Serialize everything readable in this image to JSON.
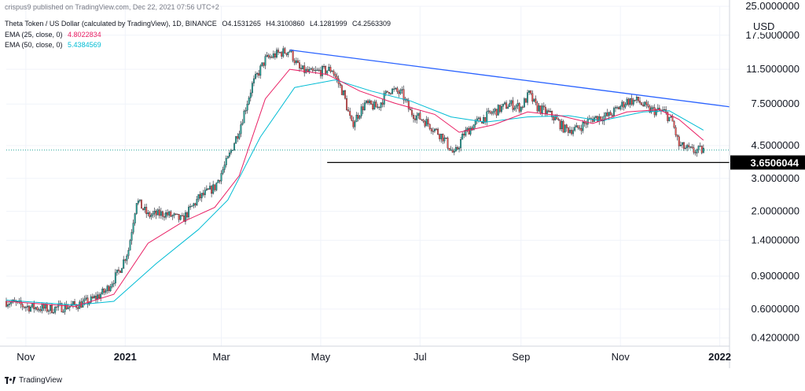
{
  "publish_info": "crispus9 published on TradingView.com, Dec 22, 2021 07:56 UTC+2",
  "legend": {
    "symbol": "Theta Token / US Dollar (calculated by TradingView), 1D, BINANCE",
    "ohlc": {
      "o": "O4.1531265",
      "h": "H4.3100860",
      "l": "L4.1281999",
      "c": "C4.2563309"
    },
    "ema25": {
      "label": "EMA (25, close, 0)",
      "value": "4.8022834"
    },
    "ema50": {
      "label": "EMA (50, close, 0)",
      "value": "5.4384569"
    }
  },
  "price_axis": {
    "currency": "USD",
    "ticks": [
      "25.0000000",
      "17.5000000",
      "11.5000000",
      "7.5000000",
      "4.5000000",
      "3.0000000",
      "2.0000000",
      "1.4000000",
      "0.9000000",
      "0.6000000",
      "0.4200000"
    ],
    "last_price_label": "3.6506044"
  },
  "time_axis": {
    "ticks": [
      "Nov",
      "2021",
      "Mar",
      "May",
      "Jul",
      "Sep",
      "Nov",
      "2022"
    ]
  },
  "footer": {
    "brand": "TradingView"
  },
  "colors": {
    "up": "#26a69a",
    "down": "#ef5350",
    "candle": "#131722",
    "ema25": "#e91e63",
    "ema50": "#00bcd4",
    "trendline": "#2962ff",
    "support": "#000000",
    "current_price_line": "#26a69a"
  },
  "chart_data": {
    "type": "candlestick",
    "scale": "log",
    "ylim": [
      0.38,
      25
    ],
    "x_range": [
      "2020-10-20",
      "2022-01-07"
    ],
    "series_close": [
      [
        "2020-10-20",
        0.66
      ],
      [
        "2020-11-01",
        0.62
      ],
      [
        "2020-11-15",
        0.6
      ],
      [
        "2020-12-01",
        0.63
      ],
      [
        "2020-12-10",
        0.66
      ],
      [
        "2020-12-20",
        0.75
      ],
      [
        "2020-12-28",
        0.95
      ],
      [
        "2021-01-03",
        1.25
      ],
      [
        "2021-01-08",
        2.3
      ],
      [
        "2021-01-15",
        1.9
      ],
      [
        "2021-01-25",
        1.95
      ],
      [
        "2021-02-05",
        1.8
      ],
      [
        "2021-02-15",
        2.35
      ],
      [
        "2021-02-25",
        2.7
      ],
      [
        "2021-03-05",
        3.8
      ],
      [
        "2021-03-12",
        5.5
      ],
      [
        "2021-03-20",
        9.5
      ],
      [
        "2021-03-28",
        13.0
      ],
      [
        "2021-04-05",
        14.0
      ],
      [
        "2021-04-12",
        14.5
      ],
      [
        "2021-04-18",
        11.5
      ],
      [
        "2021-04-25",
        11.0
      ],
      [
        "2021-05-02",
        11.3
      ],
      [
        "2021-05-08",
        11.5
      ],
      [
        "2021-05-15",
        8.5
      ],
      [
        "2021-05-20",
        5.8
      ],
      [
        "2021-05-28",
        7.5
      ],
      [
        "2021-06-05",
        7.2
      ],
      [
        "2021-06-12",
        9.0
      ],
      [
        "2021-06-20",
        8.5
      ],
      [
        "2021-06-25",
        6.8
      ],
      [
        "2021-07-05",
        6.0
      ],
      [
        "2021-07-15",
        5.0
      ],
      [
        "2021-07-22",
        4.0
      ],
      [
        "2021-07-28",
        5.2
      ],
      [
        "2021-08-05",
        6.0
      ],
      [
        "2021-08-15",
        6.8
      ],
      [
        "2021-08-25",
        7.5
      ],
      [
        "2021-09-01",
        7.2
      ],
      [
        "2021-09-06",
        8.5
      ],
      [
        "2021-09-10",
        7.3
      ],
      [
        "2021-09-20",
        6.5
      ],
      [
        "2021-09-28",
        5.5
      ],
      [
        "2021-10-05",
        5.5
      ],
      [
        "2021-10-15",
        6.3
      ],
      [
        "2021-10-25",
        6.5
      ],
      [
        "2021-11-05",
        7.8
      ],
      [
        "2021-11-12",
        7.8
      ],
      [
        "2021-11-18",
        7.0
      ],
      [
        "2021-11-28",
        6.8
      ],
      [
        "2021-12-03",
        6.0
      ],
      [
        "2021-12-07",
        4.5
      ],
      [
        "2021-12-15",
        4.2
      ],
      [
        "2021-12-22",
        4.26
      ]
    ],
    "ema25": [
      [
        "2020-10-20",
        0.66
      ],
      [
        "2020-12-01",
        0.62
      ],
      [
        "2020-12-25",
        0.72
      ],
      [
        "2021-01-15",
        1.35
      ],
      [
        "2021-02-05",
        1.75
      ],
      [
        "2021-02-25",
        2.1
      ],
      [
        "2021-03-12",
        3.1
      ],
      [
        "2021-03-28",
        8.0
      ],
      [
        "2021-04-12",
        11.5
      ],
      [
        "2021-05-05",
        10.8
      ],
      [
        "2021-05-25",
        8.8
      ],
      [
        "2021-06-15",
        7.6
      ],
      [
        "2021-07-10",
        6.6
      ],
      [
        "2021-07-25",
        5.3
      ],
      [
        "2021-08-15",
        5.8
      ],
      [
        "2021-09-05",
        6.8
      ],
      [
        "2021-09-25",
        6.5
      ],
      [
        "2021-10-15",
        5.9
      ],
      [
        "2021-11-05",
        6.8
      ],
      [
        "2021-11-25",
        7.0
      ],
      [
        "2021-12-07",
        6.2
      ],
      [
        "2021-12-22",
        4.8
      ]
    ],
    "ema50": [
      [
        "2020-10-20",
        0.67
      ],
      [
        "2020-12-01",
        0.63
      ],
      [
        "2020-12-25",
        0.66
      ],
      [
        "2021-01-20",
        1.05
      ],
      [
        "2021-02-15",
        1.6
      ],
      [
        "2021-03-05",
        2.3
      ],
      [
        "2021-03-25",
        5.0
      ],
      [
        "2021-04-15",
        9.2
      ],
      [
        "2021-05-10",
        10.1
      ],
      [
        "2021-06-01",
        8.8
      ],
      [
        "2021-06-25",
        7.8
      ],
      [
        "2021-07-20",
        6.4
      ],
      [
        "2021-08-10",
        6.0
      ],
      [
        "2021-09-05",
        6.4
      ],
      [
        "2021-09-30",
        6.5
      ],
      [
        "2021-10-20",
        6.1
      ],
      [
        "2021-11-15",
        6.8
      ],
      [
        "2021-12-01",
        6.9
      ],
      [
        "2021-12-22",
        5.44
      ]
    ],
    "trendline": {
      "from": [
        "2021-04-12",
        14.6
      ],
      "to": [
        "2022-01-07",
        7.25
      ]
    },
    "support_line": {
      "from": [
        "2021-05-05",
        3.6506044
      ],
      "to": [
        "2022-01-07",
        3.6506044
      ]
    },
    "current_price": 4.2563309,
    "last_price_marker": 3.6506044
  }
}
